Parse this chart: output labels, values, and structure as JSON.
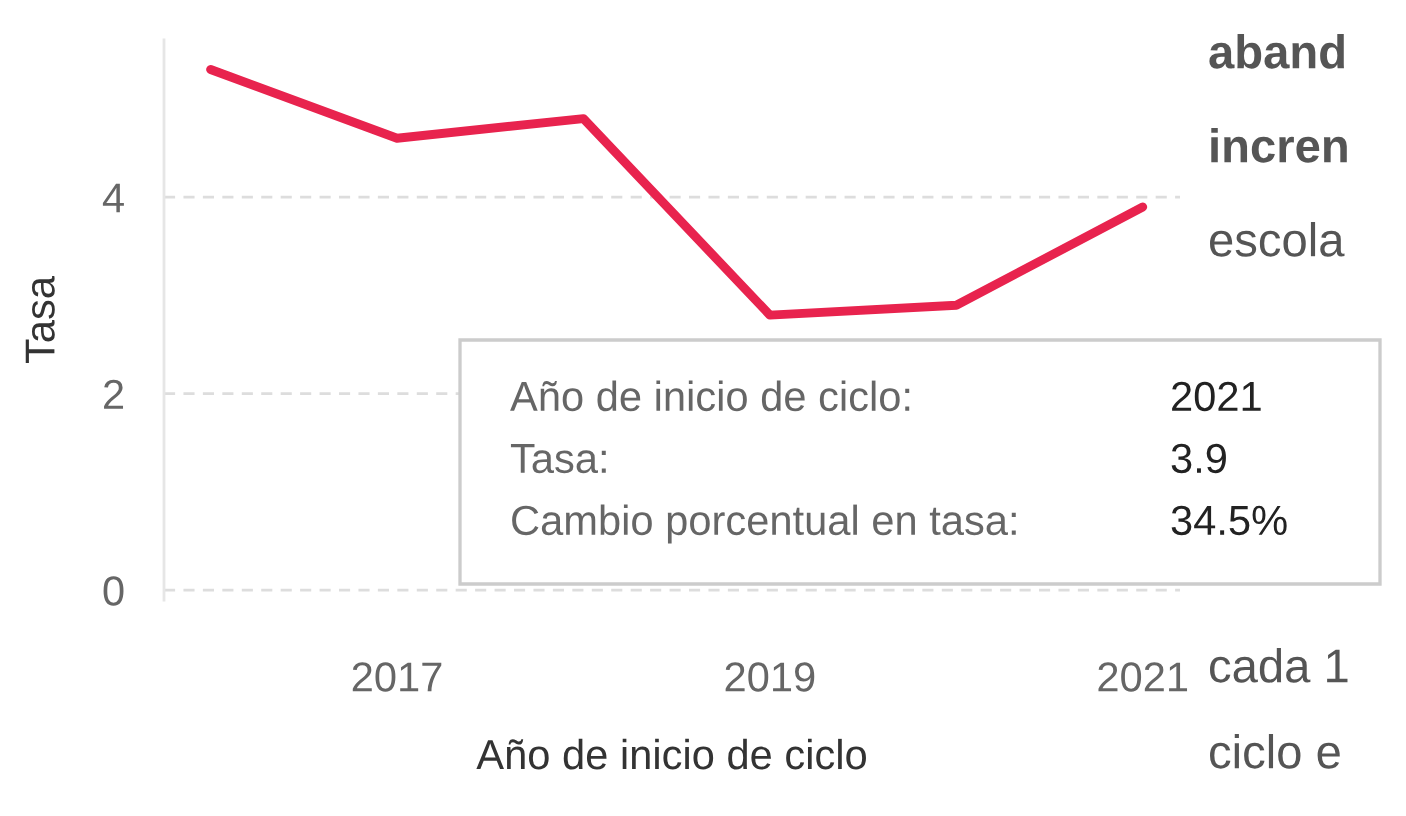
{
  "chart_data": {
    "type": "line",
    "x": [
      2016,
      2017,
      2018,
      2019,
      2020,
      2021
    ],
    "series": [
      {
        "color": "#e8234e",
        "values": [
          5.3,
          4.6,
          4.8,
          2.8,
          2.9,
          3.9
        ]
      }
    ],
    "xlim": [
      2015.75,
      2021.2
    ],
    "xticks": [
      2017,
      2019,
      2021
    ],
    "ylim": [
      -0.1,
      5.6
    ],
    "yticks": [
      0,
      2,
      4
    ],
    "xlabel": "Año de inicio de ciclo",
    "ylabel": "Tasa",
    "grid": "y",
    "legend": false,
    "marker": "none",
    "line_style": "solid",
    "annotations": [
      "Año de inicio de ciclo:",
      "2021",
      "Tasa:",
      "3.9",
      "Cambio porcentual en tasa:",
      "34.5%",
      "aband",
      "incren",
      "escola",
      "cada 1",
      "ciclo e"
    ]
  }
}
